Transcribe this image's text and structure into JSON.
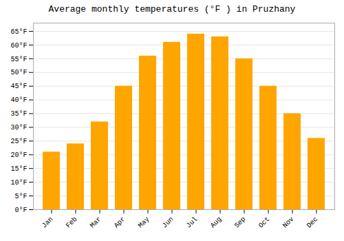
{
  "chart_data": {
    "type": "bar",
    "title": "Average monthly temperatures (°F ) in Pruzhany",
    "categories": [
      "Jan",
      "Feb",
      "Mar",
      "Apr",
      "May",
      "Jun",
      "Jul",
      "Aug",
      "Sep",
      "Oct",
      "Nov",
      "Dec"
    ],
    "values": [
      21,
      24,
      32,
      45,
      56,
      61,
      64,
      63,
      55,
      45,
      35,
      26
    ],
    "color": "#FFA500",
    "ylim": [
      0,
      68
    ],
    "yticks": [
      {
        "value": 0,
        "label": "0°F"
      },
      {
        "value": 5,
        "label": "5°F"
      },
      {
        "value": 10,
        "label": "10°F"
      },
      {
        "value": 15,
        "label": "15°F"
      },
      {
        "value": 20,
        "label": "20°F"
      },
      {
        "value": 25,
        "label": "25°F"
      },
      {
        "value": 30,
        "label": "30°F"
      },
      {
        "value": 35,
        "label": "35°F"
      },
      {
        "value": 40,
        "label": "40°F"
      },
      {
        "value": 45,
        "label": "45°F"
      },
      {
        "value": 50,
        "label": "50°F"
      },
      {
        "value": 55,
        "label": "55°F"
      },
      {
        "value": 60,
        "label": "60°F"
      },
      {
        "value": 65,
        "label": "65°F"
      }
    ],
    "grid": true
  }
}
